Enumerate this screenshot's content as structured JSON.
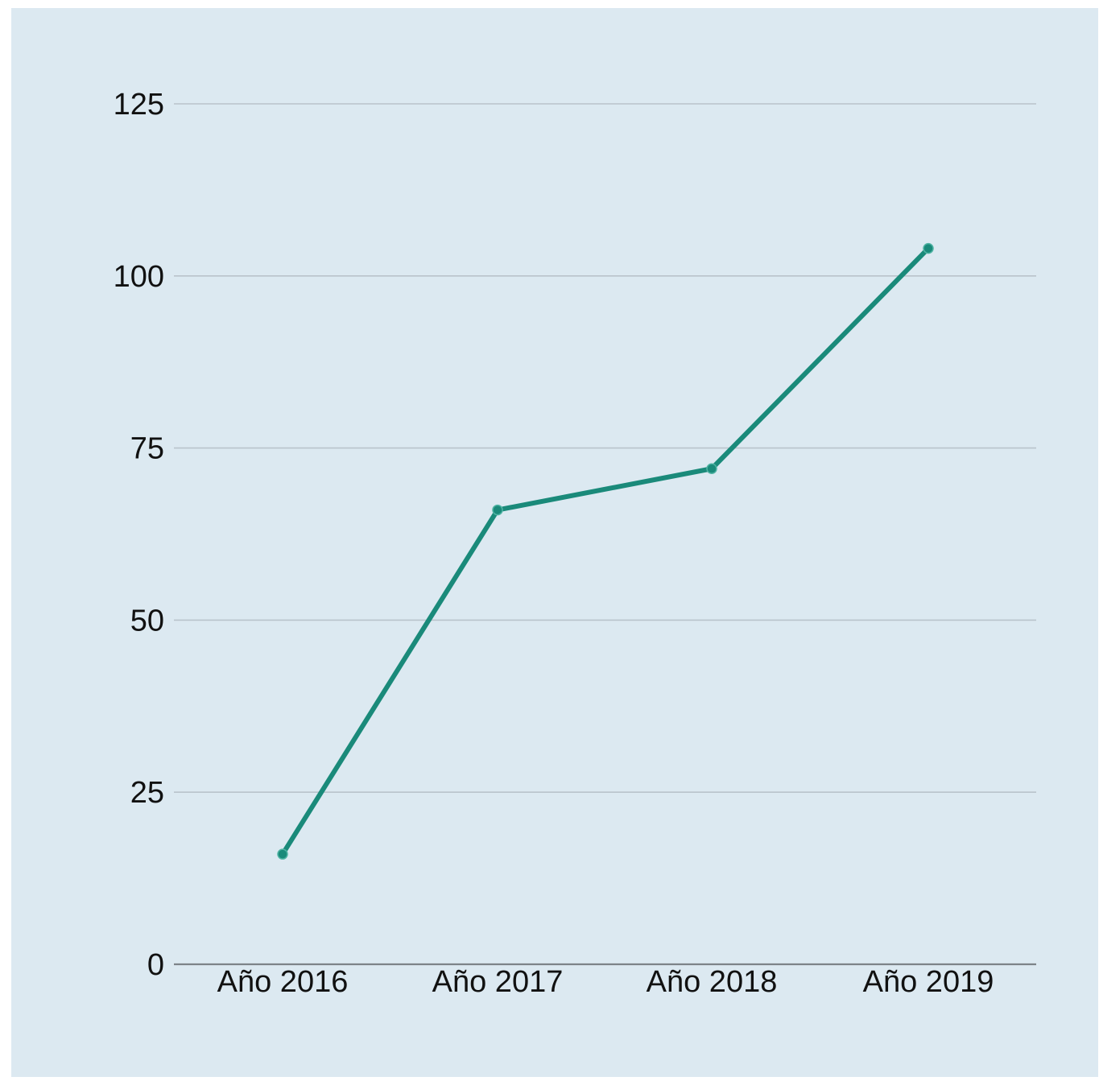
{
  "chart_data": {
    "type": "line",
    "title": "",
    "xlabel": "",
    "ylabel": "",
    "categories": [
      "Año 2016",
      "Año 2017",
      "Año 2018",
      "Año 2019"
    ],
    "series": [
      {
        "values": [
          16,
          66,
          72,
          104
        ]
      }
    ],
    "ylim": [
      0,
      125
    ],
    "yticks": [
      0,
      25,
      50,
      75,
      100,
      125
    ],
    "grid": true,
    "legend": "none",
    "colors": {
      "line": "#1a8a7a",
      "grid": "#b9c3cb",
      "axis": "#7d8388",
      "background": "#dce9f1"
    }
  }
}
